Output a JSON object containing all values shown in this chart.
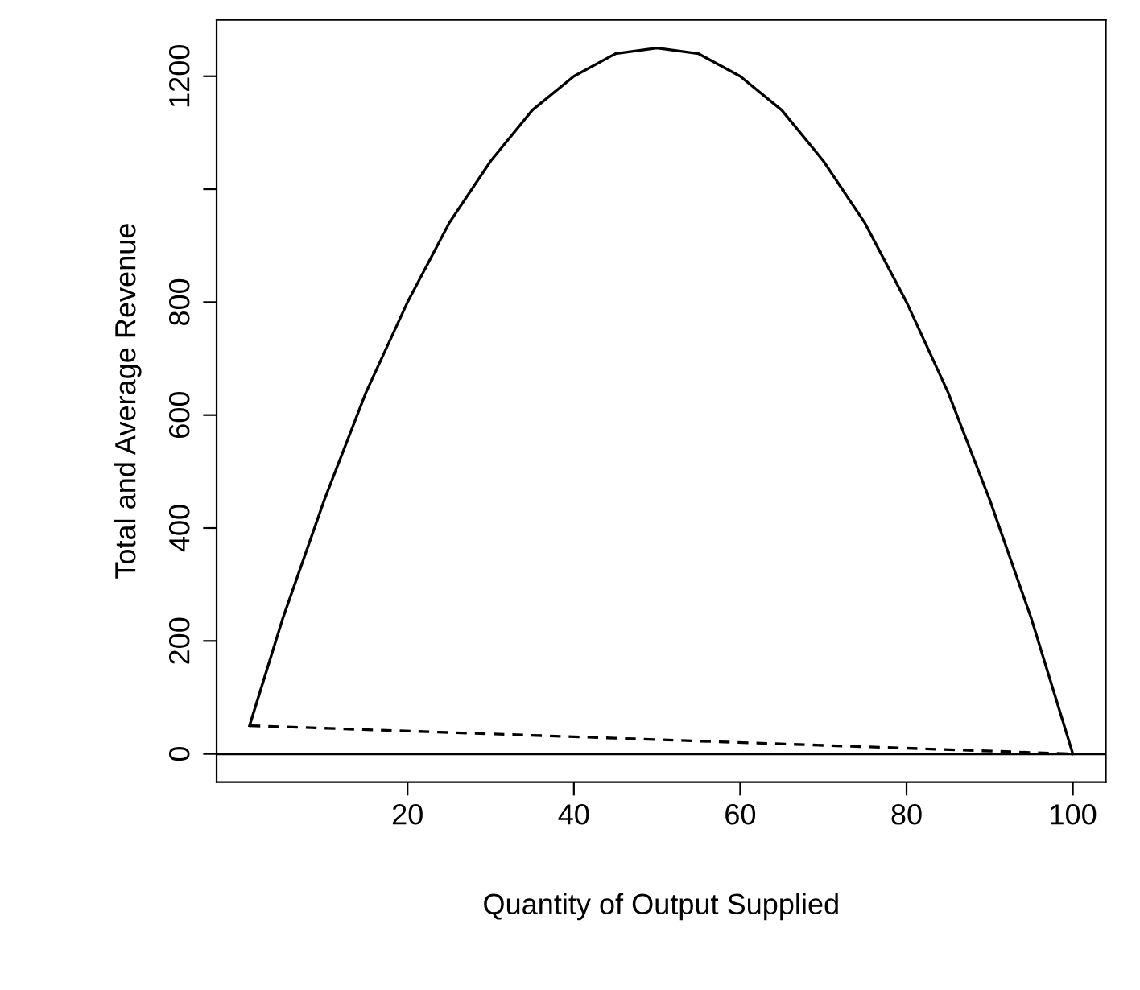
{
  "chart_data": {
    "type": "line",
    "xlabel": "Quantity of Output Supplied",
    "ylabel": "Total and Average Revenue",
    "xlim": [
      -2.96,
      103.96
    ],
    "ylim": [
      -50,
      1300
    ],
    "xticks": [
      20,
      40,
      60,
      80,
      100
    ],
    "yticks": [
      0,
      200,
      400,
      600,
      800,
      {
        "value": 1000,
        "label": null
      },
      1200
    ],
    "grid": false,
    "marker": "none",
    "series": [
      {
        "color": "#000000",
        "line_style": "solid",
        "x": [
          1,
          5,
          10,
          15,
          20,
          25,
          30,
          35,
          40,
          45,
          50,
          55,
          60,
          65,
          70,
          75,
          80,
          85,
          90,
          95,
          100
        ],
        "values": [
          50,
          240,
          450,
          640,
          800,
          940,
          1050,
          1140,
          1200,
          1240,
          1250,
          1240,
          1200,
          1140,
          1050,
          940,
          800,
          640,
          450,
          240,
          0
        ]
      },
      {
        "color": "#000000",
        "line_style": "dashed",
        "x": [
          1,
          100
        ],
        "values": [
          50,
          0
        ]
      }
    ],
    "ref_lines": [
      {
        "axis": "y",
        "value": 0,
        "color": "#000000",
        "line_style": "solid"
      }
    ]
  }
}
